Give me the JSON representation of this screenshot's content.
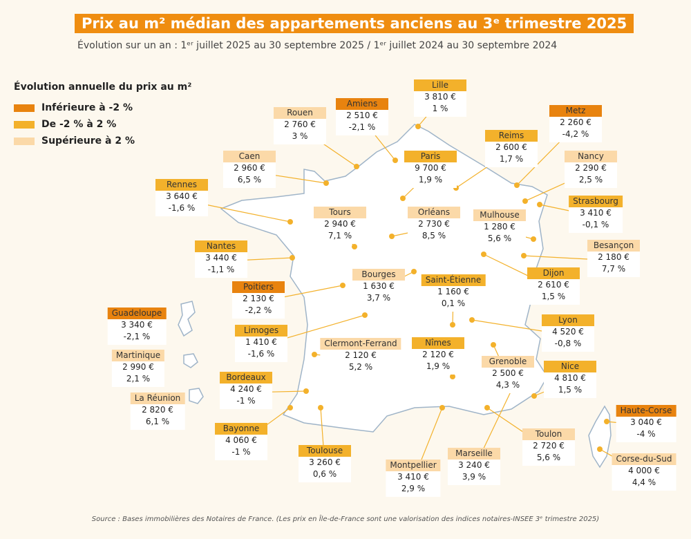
{
  "header": {
    "title": "Prix au m² médian des appartements anciens au 3ᵉ trimestre 2025",
    "subtitle": "Évolution sur un an : 1ᵉʳ juillet 2025 au 30 septembre 2025 / 1ᵉʳ juillet 2024 au 30 septembre 2024"
  },
  "legend": {
    "title": "Évolution annuelle du prix au m²",
    "items": [
      {
        "label": "Inférieure à -2 %",
        "color": "#e8830f"
      },
      {
        "label": "De -2 % à 2 %",
        "color": "#f3b12b"
      },
      {
        "label": "Supérieure à 2 %",
        "color": "#fbd9a8"
      }
    ]
  },
  "cities": [
    {
      "name": "Lille",
      "price": "3 810 €",
      "change": "1 %",
      "color": "#f3b12b"
    },
    {
      "name": "Amiens",
      "price": "2 510 €",
      "change": "-2,1 %",
      "color": "#e8830f"
    },
    {
      "name": "Rouen",
      "price": "2 760 €",
      "change": "3 %",
      "color": "#fbd9a8"
    },
    {
      "name": "Metz",
      "price": "2 260 €",
      "change": "-4,2 %",
      "color": "#e8830f"
    },
    {
      "name": "Reims",
      "price": "2 600 €",
      "change": "1,7 %",
      "color": "#f3b12b"
    },
    {
      "name": "Paris",
      "price": "9 700 €",
      "change": "1,9 %",
      "color": "#f3b12b"
    },
    {
      "name": "Caen",
      "price": "2 960 €",
      "change": "6,5 %",
      "color": "#fbd9a8"
    },
    {
      "name": "Nancy",
      "price": "2 290 €",
      "change": "2,5 %",
      "color": "#fbd9a8"
    },
    {
      "name": "Rennes",
      "price": "3 640 €",
      "change": "-1,6 %",
      "color": "#f3b12b"
    },
    {
      "name": "Strasbourg",
      "price": "3 410 €",
      "change": "-0,1 %",
      "color": "#f3b12b"
    },
    {
      "name": "Tours",
      "price": "2 940 €",
      "change": "7,1 %",
      "color": "#fbd9a8"
    },
    {
      "name": "Orléans",
      "price": "2 730 €",
      "change": "8,5 %",
      "color": "#fbd9a8"
    },
    {
      "name": "Mulhouse",
      "price": "1 280 €",
      "change": "5,6 %",
      "color": "#fbd9a8"
    },
    {
      "name": "Besançon",
      "price": "2 180 €",
      "change": "7,7 %",
      "color": "#fbd9a8"
    },
    {
      "name": "Nantes",
      "price": "3 440 €",
      "change": "-1,1 %",
      "color": "#f3b12b"
    },
    {
      "name": "Dijon",
      "price": "2 610 €",
      "change": "1,5 %",
      "color": "#f3b12b"
    },
    {
      "name": "Bourges",
      "price": "1 630 €",
      "change": "3,7 %",
      "color": "#fbd9a8"
    },
    {
      "name": "Poitiers",
      "price": "2 130 €",
      "change": "-2,2 %",
      "color": "#e8830f"
    },
    {
      "name": "Saint-Étienne",
      "price": "1 160 €",
      "change": "0,1 %",
      "color": "#f3b12b"
    },
    {
      "name": "Guadeloupe",
      "price": "3 340 €",
      "change": "-2,1 %",
      "color": "#e8830f"
    },
    {
      "name": "Lyon",
      "price": "4 520 €",
      "change": "-0,8 %",
      "color": "#f3b12b"
    },
    {
      "name": "Limoges",
      "price": "1 410 €",
      "change": "-1,6 %",
      "color": "#f3b12b"
    },
    {
      "name": "Nîmes",
      "price": "2 120 €",
      "change": "1,9 %",
      "color": "#f3b12b"
    },
    {
      "name": "Clermont-Ferrand",
      "price": "2 120 €",
      "change": "5,2 %",
      "color": "#fbd9a8"
    },
    {
      "name": "Martinique",
      "price": "2 990 €",
      "change": "2,1 %",
      "color": "#fbd9a8"
    },
    {
      "name": "Grenoble",
      "price": "2 500 €",
      "change": "4,3 %",
      "color": "#fbd9a8"
    },
    {
      "name": "Nice",
      "price": "4 810 €",
      "change": "1,5 %",
      "color": "#f3b12b"
    },
    {
      "name": "Bordeaux",
      "price": "4 240 €",
      "change": "-1 %",
      "color": "#f3b12b"
    },
    {
      "name": "La Réunion",
      "price": "2 820 €",
      "change": "6,1 %",
      "color": "#fbd9a8"
    },
    {
      "name": "Bayonne",
      "price": "4 060 €",
      "change": "-1 %",
      "color": "#f3b12b"
    },
    {
      "name": "Toulouse",
      "price": "3 260 €",
      "change": "0,6 %",
      "color": "#f3b12b"
    },
    {
      "name": "Toulon",
      "price": "2 720 €",
      "change": "5,6 %",
      "color": "#fbd9a8"
    },
    {
      "name": "Montpellier",
      "price": "3 410 €",
      "change": "2,9 %",
      "color": "#fbd9a8"
    },
    {
      "name": "Marseille",
      "price": "3 240 €",
      "change": "3,9 %",
      "color": "#fbd9a8"
    },
    {
      "name": "Haute-Corse",
      "price": "3 040 €",
      "change": "-4 %",
      "color": "#e8830f"
    },
    {
      "name": "Corse-du-Sud",
      "price": "4 000 €",
      "change": "4,4 %",
      "color": "#fbd9a8"
    }
  ],
  "footer": {
    "source": "Source : Bases immobilières des Notaires de France. (Les prix en Île-de-France sont une valorisation des indices notaires-INSEE 3ᵉ trimestre 2025)"
  }
}
